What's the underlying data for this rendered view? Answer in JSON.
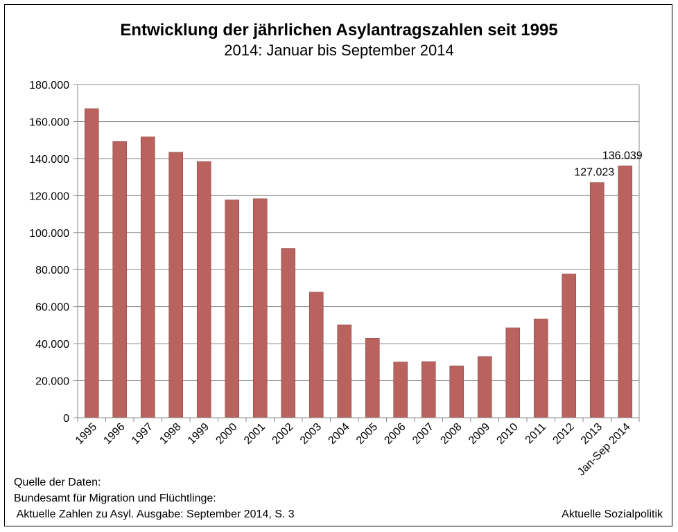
{
  "chart_data": {
    "type": "bar",
    "title": "Entwicklung der jährlichen Asylantragszahlen seit 1995",
    "subtitle": "2014: Januar bis September 2014",
    "categories": [
      "1995",
      "1996",
      "1997",
      "1998",
      "1999",
      "2000",
      "2001",
      "2002",
      "2003",
      "2004",
      "2005",
      "2006",
      "2007",
      "2008",
      "2009",
      "2010",
      "2011",
      "2012",
      "2013",
      "Jan-Sep 2014"
    ],
    "values": [
      166951,
      149193,
      151700,
      143429,
      138319,
      117648,
      118306,
      91471,
      67848,
      50152,
      42908,
      30100,
      30303,
      28018,
      33033,
      48589,
      53347,
      77651,
      127023,
      136039
    ],
    "data_labels": [
      {
        "category": "2013",
        "text": "127.023"
      },
      {
        "category": "Jan-Sep 2014",
        "text": "136.039"
      }
    ],
    "yticks": [
      "0",
      "20.000",
      "40.000",
      "60.000",
      "80.000",
      "100.000",
      "120.000",
      "140.000",
      "160.000",
      "180.000"
    ],
    "ylim": [
      0,
      180000
    ],
    "xlabel": "",
    "ylabel": "",
    "grid": true,
    "bar_color": "#b9625e"
  },
  "footer": {
    "source_heading": "Quelle der Daten:",
    "source_line1": "Bundesamt für Migration und Flüchtlinge:",
    "source_line2": " Aktuelle Zahlen zu Asyl. Ausgabe: September 2014, S. 3",
    "credit": "Aktuelle Sozialpolitik"
  }
}
